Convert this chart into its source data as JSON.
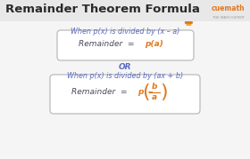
{
  "title": "Remainder Theorem Formula",
  "title_color": "#2a2a2a",
  "title_fontsize": 9.5,
  "bg_color": "#f5f5f5",
  "text_color_blue": "#5b6abf",
  "text_color_orange": "#e07820",
  "text_color_dark": "#4a4a5a",
  "box_border_color": "#bbbbbb",
  "box_bg_color": "#ffffff",
  "line1_text": "When p(x) is divided by (x – a)",
  "or_text": "OR",
  "line2_text": "When p(x) is divided by (ax + b)",
  "cuemath_color": "#e07820",
  "cuemath_sub_color": "#999999"
}
